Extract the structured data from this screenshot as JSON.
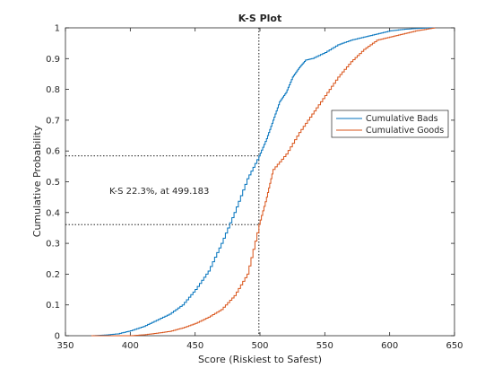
{
  "chart_data": {
    "type": "line",
    "title": "K-S Plot",
    "xlabel": "Score (Riskiest to Safest)",
    "ylabel": "Cumulative Probability",
    "xlim": [
      350,
      650
    ],
    "ylim": [
      0,
      1
    ],
    "xticks": [
      "350",
      "400",
      "450",
      "500",
      "550",
      "600",
      "650"
    ],
    "yticks": [
      "0",
      "0.1",
      "0.2",
      "0.3",
      "0.4",
      "0.5",
      "0.6",
      "0.7",
      "0.8",
      "0.9",
      "1"
    ],
    "grid": false,
    "legend_position": "right",
    "annotation": "K-S 22.3%, at 499.183",
    "ks": {
      "x": 499.183,
      "bads_y": 0.584,
      "goods_y": 0.361
    },
    "series": [
      {
        "name": "Cumulative Bads",
        "color": "#0072BD",
        "x": [
          370,
          380,
          390,
          400,
          410,
          420,
          430,
          440,
          450,
          460,
          470,
          480,
          490,
          499.183,
          505,
          510,
          515,
          520,
          525,
          530,
          535,
          540,
          550,
          560,
          570,
          580,
          590,
          600,
          610,
          620,
          630
        ],
        "y": [
          0.0,
          0.002,
          0.006,
          0.016,
          0.03,
          0.05,
          0.07,
          0.1,
          0.15,
          0.21,
          0.3,
          0.4,
          0.51,
          0.584,
          0.64,
          0.7,
          0.76,
          0.79,
          0.84,
          0.87,
          0.895,
          0.9,
          0.92,
          0.945,
          0.96,
          0.97,
          0.98,
          0.99,
          0.995,
          0.998,
          1.0
        ]
      },
      {
        "name": "Cumulative Goods",
        "color": "#D95319",
        "x": [
          400,
          410,
          420,
          430,
          440,
          450,
          460,
          470,
          480,
          490,
          499.183,
          505,
          510,
          520,
          530,
          540,
          550,
          560,
          570,
          580,
          590,
          600,
          610,
          620,
          630,
          635
        ],
        "y": [
          0.0,
          0.003,
          0.008,
          0.014,
          0.025,
          0.04,
          0.06,
          0.085,
          0.13,
          0.2,
          0.361,
          0.45,
          0.54,
          0.59,
          0.66,
          0.72,
          0.78,
          0.84,
          0.89,
          0.93,
          0.96,
          0.97,
          0.98,
          0.99,
          0.997,
          1.0
        ]
      }
    ]
  }
}
